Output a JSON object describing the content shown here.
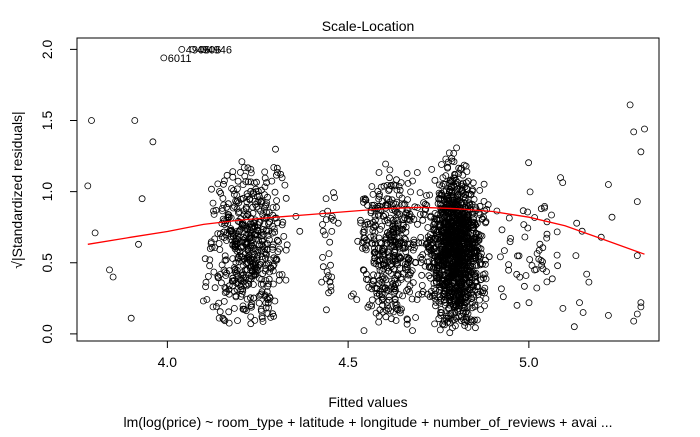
{
  "chart_data": {
    "type": "scatter",
    "title": "Scale-Location",
    "xlabel": "Fitted values",
    "ylabel": "√|Standardized residuals|",
    "subtitle": "lm(log(price) ~ room_type + latitude + longitude + number_of_reviews + avai ...",
    "xlim": [
      3.75,
      5.36
    ],
    "ylim": [
      -0.05,
      2.08
    ],
    "x_ticks": [
      4.0,
      4.5,
      5.0
    ],
    "x_tick_labels": [
      "4.0",
      "4.5",
      "5.0"
    ],
    "y_ticks": [
      0.0,
      0.5,
      1.0,
      1.5,
      2.0
    ],
    "y_tick_labels": [
      "0.0",
      "0.5",
      "1.0",
      "1.5",
      "2.0"
    ],
    "grid": false,
    "marker": "open-circle",
    "point_color": "#000000",
    "smoother_color": "#ff0000",
    "smoother": {
      "name": "lowess",
      "x": [
        3.78,
        3.9,
        4.0,
        4.1,
        4.2,
        4.3,
        4.4,
        4.5,
        4.6,
        4.7,
        4.8,
        4.9,
        5.0,
        5.1,
        5.2,
        5.32
      ],
      "y": [
        0.63,
        0.68,
        0.72,
        0.77,
        0.8,
        0.82,
        0.84,
        0.86,
        0.88,
        0.89,
        0.88,
        0.86,
        0.82,
        0.76,
        0.67,
        0.56
      ]
    },
    "labeled_points": [
      {
        "label": "6011",
        "x": 3.99,
        "y": 1.94
      },
      {
        "label": "4906",
        "x": 4.04,
        "y": 2.0
      },
      {
        "label": "4906",
        "x": 4.07,
        "y": 2.0
      },
      {
        "label": "4946",
        "x": 4.1,
        "y": 2.0
      }
    ],
    "clusters": [
      {
        "x_center": 4.22,
        "x_spread": 0.09,
        "n": 520
      },
      {
        "x_center": 4.8,
        "x_spread": 0.06,
        "n": 1300
      },
      {
        "x_center": 4.62,
        "x_spread": 0.07,
        "n": 420
      },
      {
        "x_center": 5.03,
        "x_spread": 0.09,
        "n": 60
      },
      {
        "x_center": 4.45,
        "x_spread": 0.02,
        "n": 30
      }
    ],
    "sparse_points": [
      [
        3.79,
        1.5
      ],
      [
        3.78,
        1.04
      ],
      [
        3.8,
        0.71
      ],
      [
        3.84,
        0.45
      ],
      [
        3.85,
        0.4
      ],
      [
        3.91,
        1.5
      ],
      [
        3.9,
        0.11
      ],
      [
        3.92,
        0.63
      ],
      [
        3.96,
        1.35
      ],
      [
        3.93,
        0.95
      ],
      [
        5.14,
        0.22
      ],
      [
        5.15,
        0.15
      ],
      [
        5.13,
        0.55
      ],
      [
        5.16,
        0.42
      ],
      [
        5.2,
        0.68
      ],
      [
        5.22,
        1.05
      ],
      [
        5.23,
        0.82
      ],
      [
        5.22,
        0.13
      ],
      [
        5.28,
        1.61
      ],
      [
        5.29,
        1.42
      ],
      [
        5.3,
        0.93
      ],
      [
        5.31,
        0.19
      ],
      [
        5.31,
        1.28
      ],
      [
        5.3,
        0.55
      ],
      [
        5.29,
        0.09
      ],
      [
        5.32,
        1.44
      ],
      [
        5.31,
        0.22
      ],
      [
        5.3,
        0.14
      ]
    ]
  }
}
